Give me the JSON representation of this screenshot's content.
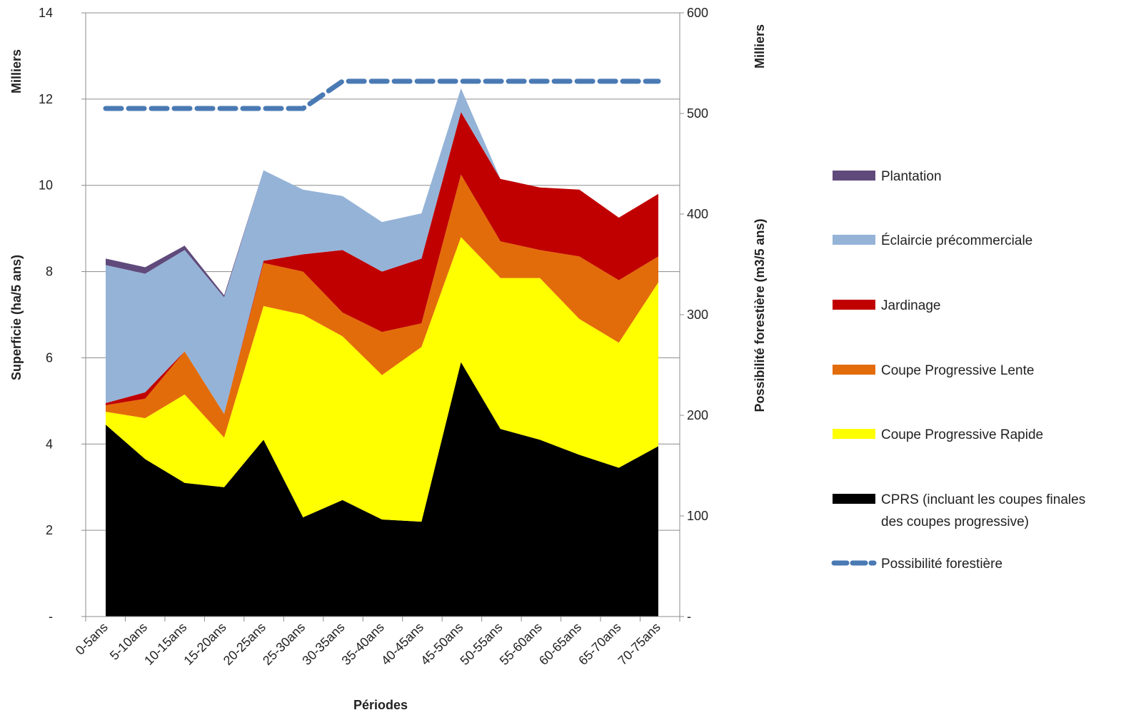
{
  "chart_data": {
    "type": "area",
    "categories": [
      "0-5ans",
      "5-10ans",
      "10-15ans",
      "15-20ans",
      "20-25ans",
      "25-30ans",
      "30-35ans",
      "35-40ans",
      "40-45ans",
      "45-50ans",
      "50-55ans",
      "55-60ans",
      "60-65ans",
      "65-70ans",
      "70-75ans"
    ],
    "xlabel": "Périodes",
    "ylabel_left": "Superficie (ha/5 ans)",
    "ylabel_right": "Possibilité forestière (m3/5 ans)",
    "units_left": "Milliers",
    "units_right": "Milliers",
    "ylim_left": [
      0,
      14
    ],
    "ylim_right": [
      0,
      600
    ],
    "yticks_left": [
      "-",
      "2",
      "4",
      "6",
      "8",
      "10",
      "12",
      "14"
    ],
    "yticks_right": [
      "-",
      "100",
      "200",
      "300",
      "400",
      "500",
      "600"
    ],
    "grid": true,
    "legend_position": "right",
    "stacked_series": [
      {
        "name": "CPRS (incluant les coupes finales des coupes progressive)",
        "color": "#000000",
        "values": [
          4.45,
          3.65,
          3.1,
          3.0,
          4.1,
          2.3,
          2.7,
          2.25,
          2.2,
          5.9,
          4.35,
          4.1,
          3.75,
          3.45,
          3.95
        ]
      },
      {
        "name": "Coupe Progressive Rapide",
        "color": "#ffff00",
        "values": [
          0.3,
          0.95,
          2.05,
          1.15,
          3.1,
          4.7,
          3.8,
          3.35,
          4.05,
          2.9,
          3.5,
          3.75,
          3.15,
          2.9,
          3.8
        ]
      },
      {
        "name": "Coupe Progressive Lente",
        "color": "#e36c0a",
        "values": [
          0.15,
          0.45,
          1.0,
          0.55,
          1.0,
          1.0,
          0.55,
          1.0,
          0.55,
          1.45,
          0.85,
          0.65,
          1.45,
          1.45,
          0.6
        ]
      },
      {
        "name": "Jardinage",
        "color": "#c00000",
        "values": [
          0.05,
          0.15,
          0.0,
          0.0,
          0.05,
          0.4,
          1.45,
          1.4,
          1.5,
          1.45,
          1.45,
          1.45,
          1.55,
          1.45,
          1.45
        ]
      },
      {
        "name": "Éclaircie précommerciale",
        "color": "#95b3d7",
        "values": [
          3.2,
          2.75,
          2.35,
          2.7,
          2.1,
          1.5,
          1.25,
          1.15,
          1.05,
          0.55,
          0.0,
          0.0,
          0.0,
          0.0,
          0.0
        ]
      },
      {
        "name": "Plantation",
        "color": "#604a7b",
        "values": [
          0.15,
          0.15,
          0.1,
          0.05,
          0.0,
          0.0,
          0.0,
          0.0,
          0.0,
          0.0,
          0.0,
          0.0,
          0.0,
          0.0,
          0.0
        ]
      }
    ],
    "line_series": {
      "name": "Possibilité forestière",
      "color": "#4a7ab4",
      "axis": "right",
      "values": [
        505,
        505,
        505,
        505,
        505,
        505,
        532,
        532,
        532,
        532,
        532,
        532,
        532,
        532,
        532
      ]
    },
    "legend_order": [
      "Plantation",
      "Éclaircie précommerciale",
      "Jardinage",
      "Coupe Progressive Lente",
      "Coupe Progressive Rapide",
      "CPRS (incluant les coupes finales des coupes progressive)",
      "Possibilité forestière"
    ]
  }
}
